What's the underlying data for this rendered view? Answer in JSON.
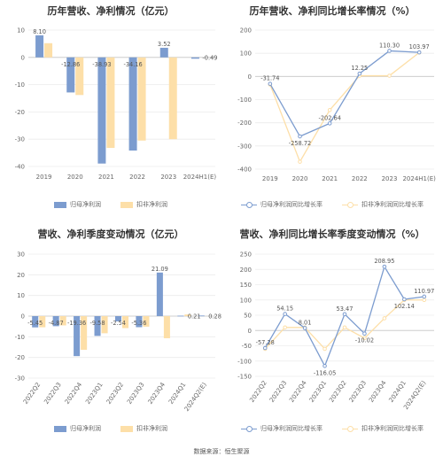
{
  "colors": {
    "series_a": "#7c9ccf",
    "series_b": "#fddfa8",
    "axis": "#d9d9d9",
    "grid": "#ececec",
    "text": "#666666"
  },
  "source": "数据来源：恒生聚源",
  "chart_data": [
    {
      "id": "annual-profit",
      "type": "bar",
      "title": "历年营收、净利情况（亿元）",
      "categories": [
        "2019",
        "2020",
        "2021",
        "2022",
        "2023",
        "2024H1(E)"
      ],
      "series": [
        {
          "name": "归母净利润",
          "values": [
            8.1,
            -12.86,
            -38.93,
            -34.16,
            3.52,
            -0.49
          ],
          "labels": [
            "8.10",
            "-12.86",
            "-38.93",
            "-34.16",
            "3.52",
            "-0.49"
          ]
        },
        {
          "name": "扣非净利润",
          "values": [
            5.2,
            -13.8,
            -33.2,
            -30.5,
            -30.0,
            null
          ]
        }
      ],
      "ylim": [
        -40,
        10
      ],
      "yticks": [
        10,
        0,
        -10,
        -20,
        -30,
        -40
      ],
      "ytick_labels": [
        "10",
        "0",
        "-10",
        "-20",
        "-30",
        "-40"
      ],
      "grid": true,
      "legend": "bottom"
    },
    {
      "id": "annual-growth",
      "type": "line",
      "title": "历年营收、净利同比增长率情况（%）",
      "categories": [
        "2019",
        "2020",
        "2021",
        "2022",
        "2023",
        "2024H1(E)"
      ],
      "series": [
        {
          "name": "归母净利润同比增长率",
          "values": [
            -31.74,
            -258.72,
            -202.64,
            12.25,
            110.3,
            103.97
          ],
          "labels": [
            "-31.74",
            "-258.72",
            "-202.64",
            "12.25",
            "110.30",
            "103.97"
          ]
        },
        {
          "name": "扣非净利润同比增长率",
          "values": [
            -35,
            -368,
            -145,
            3,
            3,
            103
          ]
        }
      ],
      "ylim": [
        -400,
        200
      ],
      "yticks": [
        200,
        100,
        0,
        -100,
        -200,
        -300,
        -400
      ],
      "ytick_labels": [
        "200",
        "100",
        "0",
        "-100",
        "-200",
        "-300",
        "-400"
      ],
      "grid": true,
      "legend": "bottom"
    },
    {
      "id": "quarterly-profit",
      "type": "bar",
      "title": "营收、净利季度变动情况（亿元）",
      "categories": [
        "2022Q2",
        "2022Q3",
        "2022Q4",
        "2023Q1",
        "2023Q2",
        "2023Q3",
        "2023Q4",
        "2024Q1",
        "2024Q2(E)"
      ],
      "series": [
        {
          "name": "归母净利润",
          "values": [
            -5.45,
            -4.87,
            -19.36,
            -9.58,
            -2.54,
            -5.36,
            21.09,
            0.21,
            0.28
          ],
          "labels": [
            "-5.45",
            "-4.87",
            "-19.36",
            "-9.58",
            "-2.54",
            "-5.36",
            "21.09",
            "0.21",
            "0.28"
          ]
        },
        {
          "name": "扣非净利润",
          "values": [
            -5.4,
            -4.5,
            -16.3,
            -8.3,
            -5.8,
            -5.1,
            -10.7,
            0.8,
            null
          ]
        }
      ],
      "ylim": [
        -30,
        30
      ],
      "yticks": [
        30,
        20,
        10,
        0,
        -10,
        -20,
        -30
      ],
      "ytick_labels": [
        "30",
        "20",
        "10",
        "0",
        "-10",
        "-20",
        "-30"
      ],
      "grid": true,
      "legend": "bottom"
    },
    {
      "id": "quarterly-growth",
      "type": "line",
      "title": "营收、净利同比增长率季度变动情况（%）",
      "categories": [
        "2022Q2",
        "2022Q3",
        "2022Q4",
        "2023Q1",
        "2023Q2",
        "2023Q3",
        "2023Q4",
        "2024Q1",
        "2024Q2(E)"
      ],
      "series": [
        {
          "name": "归母净利润同比增长率",
          "values": [
            -57.28,
            54.15,
            8.01,
            -116.05,
            53.47,
            -10.02,
            208.95,
            102.14,
            110.97
          ],
          "labels": [
            "-57.28",
            "54.15",
            "8.01",
            "-116.05",
            "53.47",
            "-10.02",
            "208.95",
            "102.14",
            "110.97"
          ]
        },
        {
          "name": "扣非净利润同比增长率",
          "values": [
            -60,
            10,
            10,
            -60,
            10,
            -25,
            40,
            100,
            100
          ]
        }
      ],
      "ylim": [
        -150,
        250
      ],
      "yticks": [
        250,
        200,
        150,
        100,
        50,
        0,
        -50,
        -100,
        -150
      ],
      "ytick_labels": [
        "250",
        "200",
        "150",
        "100",
        "50",
        "0",
        "-50",
        "-100",
        "-150"
      ],
      "grid": true,
      "legend": "bottom"
    }
  ]
}
